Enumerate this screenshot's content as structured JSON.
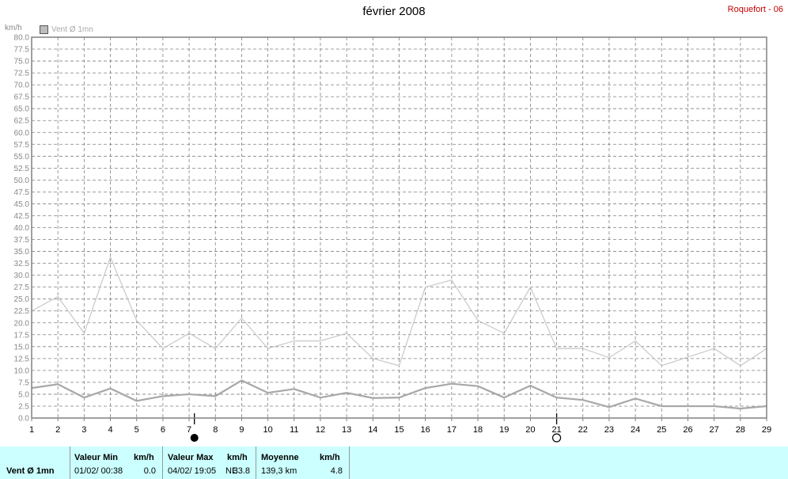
{
  "header": {
    "title": "février 2008",
    "station": "Roquefort - 06",
    "unit": "km/h",
    "legend_label": "Vent Ø 1mn"
  },
  "chart_data": {
    "type": "line",
    "title": "février 2008",
    "ylabel": "km/h",
    "xlabel": "",
    "x": [
      1,
      2,
      3,
      4,
      5,
      6,
      7,
      8,
      9,
      10,
      11,
      12,
      13,
      14,
      15,
      16,
      17,
      18,
      19,
      20,
      21,
      22,
      23,
      24,
      25,
      26,
      27,
      28,
      29
    ],
    "ylim": [
      0,
      80
    ],
    "yticks": [
      "0.0",
      "2.5",
      "5.0",
      "7.5",
      "10.0",
      "12.5",
      "15.0",
      "17.5",
      "20.0",
      "22.5",
      "25.0",
      "27.5",
      "30.0",
      "32.5",
      "35.0",
      "37.5",
      "40.0",
      "42.5",
      "45.0",
      "47.5",
      "50.0",
      "52.5",
      "55.0",
      "57.5",
      "60.0",
      "62.5",
      "65.0",
      "67.5",
      "70.0",
      "72.5",
      "75.0",
      "77.5",
      "80.0"
    ],
    "grid": true,
    "legend_position": "top-left",
    "series": [
      {
        "name": "Vent Ø 1mn",
        "color": "#c8c8c8",
        "values": [
          22.5,
          25.5,
          17.8,
          33.8,
          20.5,
          14.6,
          17.8,
          14.6,
          21.0,
          14.6,
          16.2,
          16.2,
          17.8,
          12.5,
          11.0,
          27.5,
          29.0,
          20.5,
          17.8,
          27.5,
          14.6,
          14.6,
          12.7,
          16.2,
          11.0,
          12.8,
          14.6,
          11.0,
          14.6
        ]
      },
      {
        "color": "#a8a8a8",
        "values": [
          6.3,
          7.1,
          4.3,
          6.2,
          3.6,
          4.6,
          5.0,
          4.6,
          7.9,
          5.3,
          6.1,
          4.3,
          5.3,
          4.2,
          4.3,
          6.3,
          7.2,
          6.7,
          4.3,
          6.8,
          4.3,
          3.8,
          2.3,
          4.1,
          2.5,
          2.5,
          2.5,
          2.0,
          2.5
        ]
      }
    ],
    "moon_markers": [
      {
        "x": 7.2,
        "phase": "full-moon-icon"
      },
      {
        "x": 21.0,
        "phase": "new-moon-icon"
      }
    ]
  },
  "summary": {
    "series_label": "Vent Ø 1mn",
    "min": {
      "header": "Valeur Min",
      "unit": "km/h",
      "date": "01/02/  00:38",
      "value": "0.0"
    },
    "max": {
      "header": "Valeur Max",
      "unit": "km/h",
      "date": "04/02/  19:05",
      "dir": "NE",
      "value": "33.8"
    },
    "mean": {
      "header": "Moyenne",
      "unit": "km/h",
      "distance": "139,3 km",
      "value": "4.8"
    }
  }
}
